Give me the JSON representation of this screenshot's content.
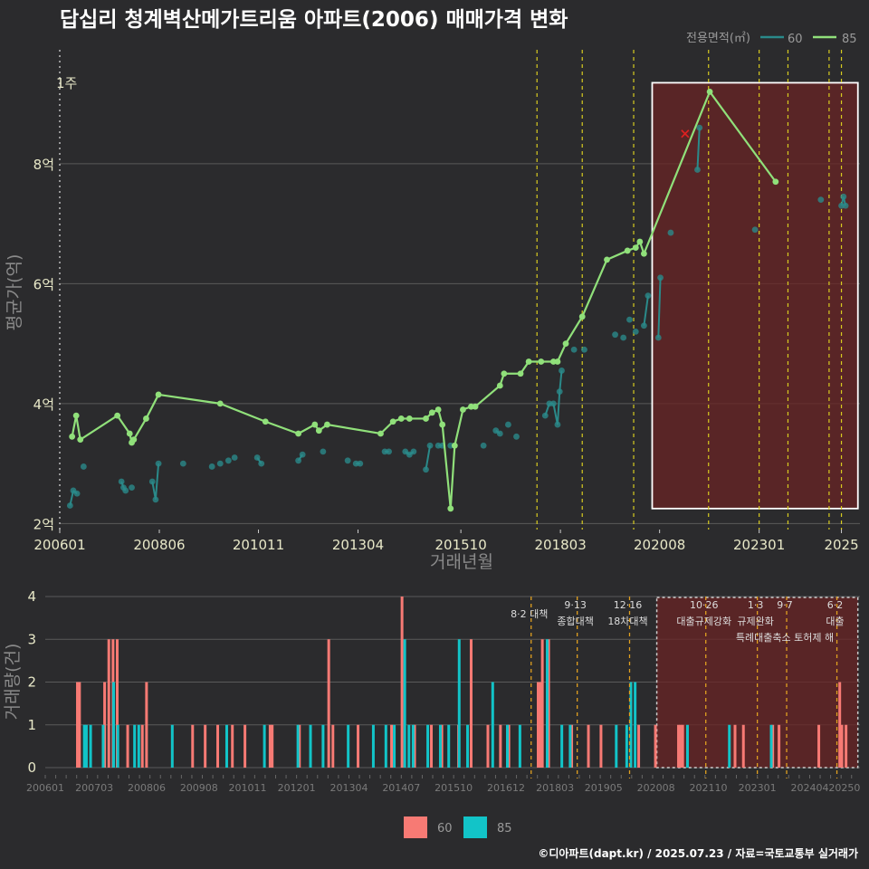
{
  "title": "답십리 청계벽산메가트리움 아파트(2006) 매매가격 변화",
  "credit": "©디아파트(dapt.kr) / 2025.07.23 / 자료=국토교통부 실거래가",
  "legend_title": "전용면적(㎡)",
  "colors": {
    "s60_line": "#2a8a8a",
    "s85_line": "#90e07a",
    "s60_bar": "#f77a74",
    "s85_bar": "#12c4c8",
    "policy": "#d8cc20",
    "highlight": "#6a2424",
    "bg": "#2b2b2d"
  },
  "chart_data": [
    {
      "type": "line",
      "title": "답십리 청계벽산메가트리움 아파트(2006) 매매가격 변화",
      "xlabel": "거래년월",
      "ylabel": "평균가(억)",
      "xlim": [
        2006.0,
        2025.45
      ],
      "ylim": [
        1.9,
        9.9
      ],
      "x_ticks": [
        2006.0,
        2008.42,
        2010.83,
        2013.25,
        2015.75,
        2018.17,
        2020.58,
        2023.0,
        2025.0
      ],
      "x_tick_labels": [
        "200601",
        "200806",
        "201011",
        "201304",
        "201510",
        "201803",
        "202008",
        "202301",
        "2025"
      ],
      "y_ticks": [
        2,
        4,
        6,
        8
      ],
      "y_tick_labels": [
        "2억",
        "4억",
        "6억",
        "8억"
      ],
      "side_label": "1주",
      "highlight_range": [
        2020.4,
        2025.4
      ],
      "policy_lines": [
        2017.6,
        2018.7,
        2019.95,
        2021.77,
        2023.0,
        2023.7,
        2024.7,
        2025.0
      ],
      "marker_x": {
        "x": 2021.2,
        "y": 8.5
      },
      "series": [
        {
          "name": "60",
          "x": [
            2006.25,
            2006.33,
            2006.42,
            2006.58,
            2007.5,
            2007.55,
            2007.6,
            2007.75,
            2008.25,
            2008.33,
            2008.4,
            2009.0,
            2009.7,
            2009.9,
            2010.1,
            2010.25,
            2010.8,
            2010.9,
            2011.8,
            2011.9,
            2012.4,
            2013.0,
            2013.2,
            2013.3,
            2013.9,
            2014.0,
            2014.4,
            2014.5,
            2014.6,
            2014.9,
            2015.0,
            2015.2,
            2015.3,
            2015.5,
            2016.3,
            2016.6,
            2016.7,
            2016.9,
            2017.1,
            2017.8,
            2017.9,
            2018.0,
            2018.1,
            2018.15,
            2018.2,
            2018.5,
            2018.75,
            2019.5,
            2019.7,
            2019.85,
            2020.0,
            2020.2,
            2020.3,
            2020.55,
            2020.6,
            2020.85,
            2021.5,
            2021.55,
            2022.9,
            2024.5,
            2025.0,
            2025.05,
            2025.1
          ],
          "y": [
            2.3,
            2.55,
            2.5,
            2.95,
            2.7,
            2.6,
            2.55,
            2.6,
            2.7,
            2.4,
            3.0,
            3.0,
            2.95,
            3.0,
            3.05,
            3.1,
            3.1,
            3.0,
            3.05,
            3.15,
            3.2,
            3.05,
            3.0,
            3.0,
            3.2,
            3.2,
            3.2,
            3.15,
            3.2,
            2.9,
            3.3,
            3.3,
            3.3,
            3.3,
            3.3,
            3.55,
            3.5,
            3.65,
            3.45,
            3.8,
            4.0,
            4.0,
            3.65,
            4.2,
            4.55,
            4.9,
            4.9,
            5.15,
            5.1,
            5.4,
            5.2,
            5.3,
            5.8,
            5.1,
            6.1,
            6.85,
            7.9,
            8.6,
            6.9,
            7.4,
            7.3,
            7.45,
            7.3
          ]
        },
        {
          "name": "85",
          "x": [
            2006.3,
            2006.4,
            2006.5,
            2007.4,
            2007.7,
            2007.75,
            2007.8,
            2008.1,
            2008.4,
            2009.9,
            2011.0,
            2011.8,
            2012.2,
            2012.3,
            2012.5,
            2013.8,
            2014.1,
            2014.3,
            2014.5,
            2014.9,
            2015.05,
            2015.2,
            2015.3,
            2015.5,
            2015.6,
            2015.8,
            2016.0,
            2016.1,
            2016.7,
            2016.8,
            2017.2,
            2017.4,
            2017.7,
            2018.0,
            2018.1,
            2018.3,
            2018.7,
            2019.3,
            2019.8,
            2020.0,
            2020.1,
            2020.2,
            2021.8,
            2023.4
          ],
          "y": [
            3.45,
            3.8,
            3.4,
            3.8,
            3.5,
            3.35,
            3.4,
            3.75,
            4.15,
            4.0,
            3.7,
            3.5,
            3.65,
            3.55,
            3.65,
            3.5,
            3.7,
            3.75,
            3.75,
            3.75,
            3.85,
            3.9,
            3.65,
            2.25,
            3.3,
            3.9,
            3.95,
            3.95,
            4.3,
            4.5,
            4.5,
            4.7,
            4.7,
            4.7,
            4.7,
            5.0,
            5.45,
            6.4,
            6.55,
            6.6,
            6.7,
            6.5,
            9.2,
            7.7
          ]
        }
      ]
    },
    {
      "type": "bar",
      "ylabel": "거래량(건)",
      "xlim": [
        2006.0,
        2025.45
      ],
      "ylim": [
        0,
        4
      ],
      "y_ticks": [
        0,
        1,
        2,
        3,
        4
      ],
      "x_ticks": [
        2006.0,
        2007.17,
        2008.42,
        2009.67,
        2010.83,
        2012.0,
        2013.25,
        2014.5,
        2015.75,
        2017.0,
        2018.17,
        2019.33,
        2020.58,
        2021.83,
        2023.0,
        2024.25,
        2025.08
      ],
      "x_tick_labels": [
        "200601",
        "200703",
        "200806",
        "200908",
        "201011",
        "201201",
        "201304",
        "201407",
        "201510",
        "201612",
        "201803",
        "201905",
        "202008",
        "202110",
        "202301",
        "202404",
        "20250"
      ],
      "highlight_range": [
        2020.6,
        2025.4
      ],
      "policy_lines": [
        {
          "x": 2017.6,
          "date": "",
          "label": "8·2 대책"
        },
        {
          "x": 2018.7,
          "date": "9·13",
          "label": "종합대책"
        },
        {
          "x": 2019.95,
          "date": "12·16",
          "label": "18차대책"
        },
        {
          "x": 2021.77,
          "date": "10·26",
          "label": "대출규제강화"
        },
        {
          "x": 2023.0,
          "date": "1·3",
          "label": "규제완화"
        },
        {
          "x": 2023.7,
          "date": "9·7",
          "label": "특례대출축소 토허제 해"
        },
        {
          "x": 2024.9,
          "date": "6·2",
          "label": "대출"
        }
      ],
      "series": [
        {
          "name": "60",
          "x": [
            2006.8,
            2006.85,
            2007.45,
            2007.55,
            2007.65,
            2007.75,
            2008.0,
            2008.35,
            2008.45,
            2009.55,
            2009.85,
            2010.15,
            2010.5,
            2010.8,
            2011.4,
            2011.45,
            2012.1,
            2012.8,
            2012.9,
            2013.5,
            2014.3,
            2014.55,
            2014.85,
            2015.25,
            2015.5,
            2015.9,
            2016.2,
            2016.6,
            2016.9,
            2017.1,
            2017.8,
            2017.85,
            2017.9,
            2018.05,
            2018.6,
            2019.0,
            2019.3,
            2020.2,
            2020.6,
            2021.15,
            2021.2,
            2021.25,
            2022.5,
            2022.7,
            2023.4,
            2023.55,
            2024.5,
            2025.0,
            2025.05,
            2025.15
          ],
          "y": [
            2,
            2,
            2,
            3,
            3,
            3,
            1,
            1,
            2,
            1,
            1,
            1,
            1,
            1,
            1,
            1,
            1,
            3,
            1,
            1,
            1,
            4,
            1,
            1,
            1,
            1,
            3,
            1,
            1,
            1,
            2,
            2,
            3,
            3,
            1,
            1,
            1,
            1,
            1,
            1,
            1,
            1,
            1,
            1,
            1,
            1,
            1,
            2,
            1,
            1
          ]
        },
        {
          "name": "85",
          "x": [
            2006.9,
            2006.95,
            2007.05,
            2007.35,
            2007.6,
            2007.7,
            2008.1,
            2008.2,
            2009.0,
            2010.3,
            2011.2,
            2012.0,
            2012.3,
            2012.6,
            2013.2,
            2013.8,
            2014.1,
            2014.3,
            2014.55,
            2014.65,
            2014.75,
            2015.1,
            2015.4,
            2015.6,
            2015.85,
            2016.05,
            2016.65,
            2017.0,
            2017.3,
            2017.95,
            2018.3,
            2018.5,
            2019.6,
            2019.85,
            2019.95,
            2020.05,
            2021.3,
            2022.3,
            2023.3
          ],
          "y": [
            1,
            1,
            1,
            1,
            2,
            1,
            1,
            1,
            1,
            1,
            1,
            1,
            1,
            1,
            1,
            1,
            1,
            1,
            3,
            1,
            1,
            1,
            1,
            1,
            3,
            1,
            2,
            1,
            1,
            3,
            1,
            1,
            1,
            1,
            2,
            2,
            1,
            1,
            1
          ]
        }
      ]
    }
  ]
}
